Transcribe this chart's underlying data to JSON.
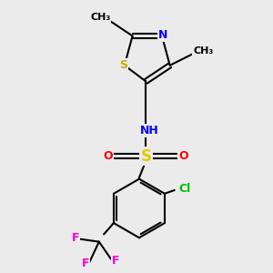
{
  "background_color": "#ebebeb",
  "colors": {
    "C": "#000000",
    "N": "#0000ff",
    "O": "#ff0000",
    "S_sul": "#e6c800",
    "S_tz": "#ccaa00",
    "F": "#ff00cc",
    "Cl": "#00bb00",
    "bond": "#000000"
  },
  "figsize": [
    3.0,
    3.0
  ],
  "dpi": 100,
  "xlim": [
    0,
    10
  ],
  "ylim": [
    0,
    10
  ]
}
